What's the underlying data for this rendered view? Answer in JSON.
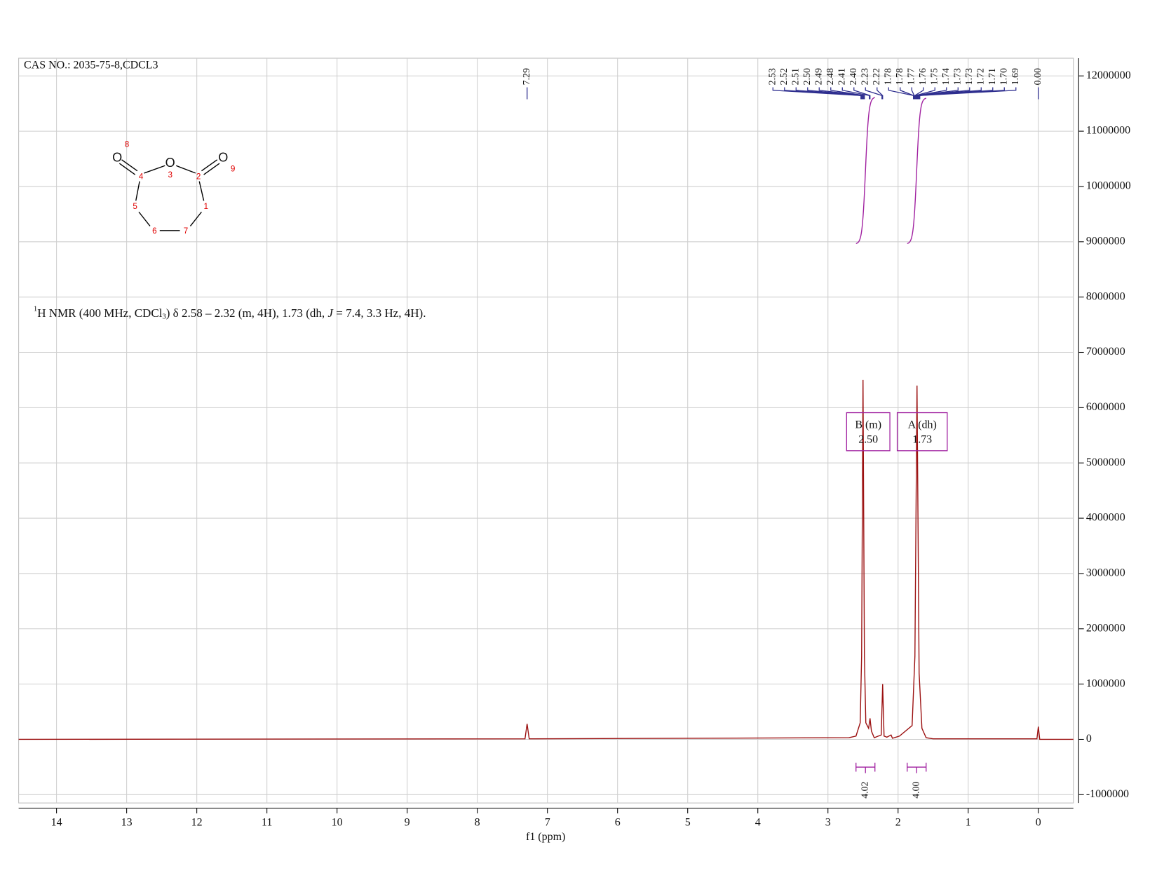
{
  "chart_data": {
    "type": "nmr",
    "header": "CAS NO.: 2035-75-8,CDCL3",
    "description": [
      "1",
      "H NMR (400 MHz, CDCl",
      "3",
      ") δ 2.58 – 2.32 (m, 4H), 1.73 (dh, ",
      "J",
      " = 7.4, 3.3 Hz, 4H)."
    ],
    "xlabel": "f1 (ppm)",
    "xlim": [
      14.54,
      -0.5
    ],
    "ylim": [
      -1150000,
      12320000
    ],
    "xticks": [
      0,
      1,
      2,
      3,
      4,
      5,
      6,
      7,
      8,
      9,
      10,
      11,
      12,
      13,
      14
    ],
    "yticks": [
      -1000000,
      0,
      1000000,
      2000000,
      3000000,
      4000000,
      5000000,
      6000000,
      7000000,
      8000000,
      9000000,
      10000000,
      11000000,
      12000000
    ],
    "grid": true,
    "color": "#9b1010",
    "x": [
      14.54,
      7.32,
      7.29,
      7.26,
      2.7,
      2.6,
      2.54,
      2.52,
      2.5,
      2.48,
      2.46,
      2.42,
      2.4,
      2.38,
      2.34,
      2.24,
      2.22,
      2.2,
      2.16,
      2.1,
      2.08,
      1.98,
      1.8,
      1.76,
      1.73,
      1.7,
      1.66,
      1.6,
      1.5,
      0.02,
      0,
      -0.02,
      -0.5
    ],
    "values": [
      0,
      10000,
      280000,
      10000,
      30000,
      60000,
      300000,
      1500000,
      6500000,
      1500000,
      300000,
      200000,
      380000,
      150000,
      30000,
      80000,
      1000000,
      60000,
      40000,
      80000,
      20000,
      60000,
      250000,
      1500000,
      6400000,
      1200000,
      200000,
      30000,
      10000,
      10000,
      230000,
      0,
      0
    ],
    "peak_labels": [
      7.29,
      2.53,
      2.52,
      2.51,
      {
        "value": 2.5,
        "label": "2.50"
      },
      2.49,
      2.48,
      2.41,
      {
        "value": 2.4,
        "label": "2.40"
      },
      2.23,
      2.22,
      1.78,
      1.78,
      1.77,
      1.76,
      1.75,
      1.74,
      1.73,
      1.73,
      1.72,
      1.71,
      {
        "value": 1.7,
        "label": "1.70"
      },
      1.69,
      {
        "value": 0,
        "label": "0.00"
      }
    ],
    "peak_label_color": "#2e2e8f",
    "integrals": {
      "ranges": [
        [
          2.6,
          2.33
        ],
        [
          1.87,
          1.6
        ]
      ],
      "values": [
        4.02,
        4
      ],
      "value_labels": [
        "4.02",
        "4.00"
      ],
      "color": "#a020a0"
    },
    "multiplets": {
      "names": [
        "B (m)",
        "A (dh)"
      ],
      "shifts": [
        2.5,
        1.73
      ],
      "shift_labels": [
        "2.50",
        "1.73"
      ]
    },
    "molecule": {
      "atom_labels": [
        "O",
        "O",
        "O"
      ],
      "atom_numbers": [
        8,
        3,
        9,
        4,
        2,
        5,
        1,
        6,
        7
      ]
    }
  }
}
